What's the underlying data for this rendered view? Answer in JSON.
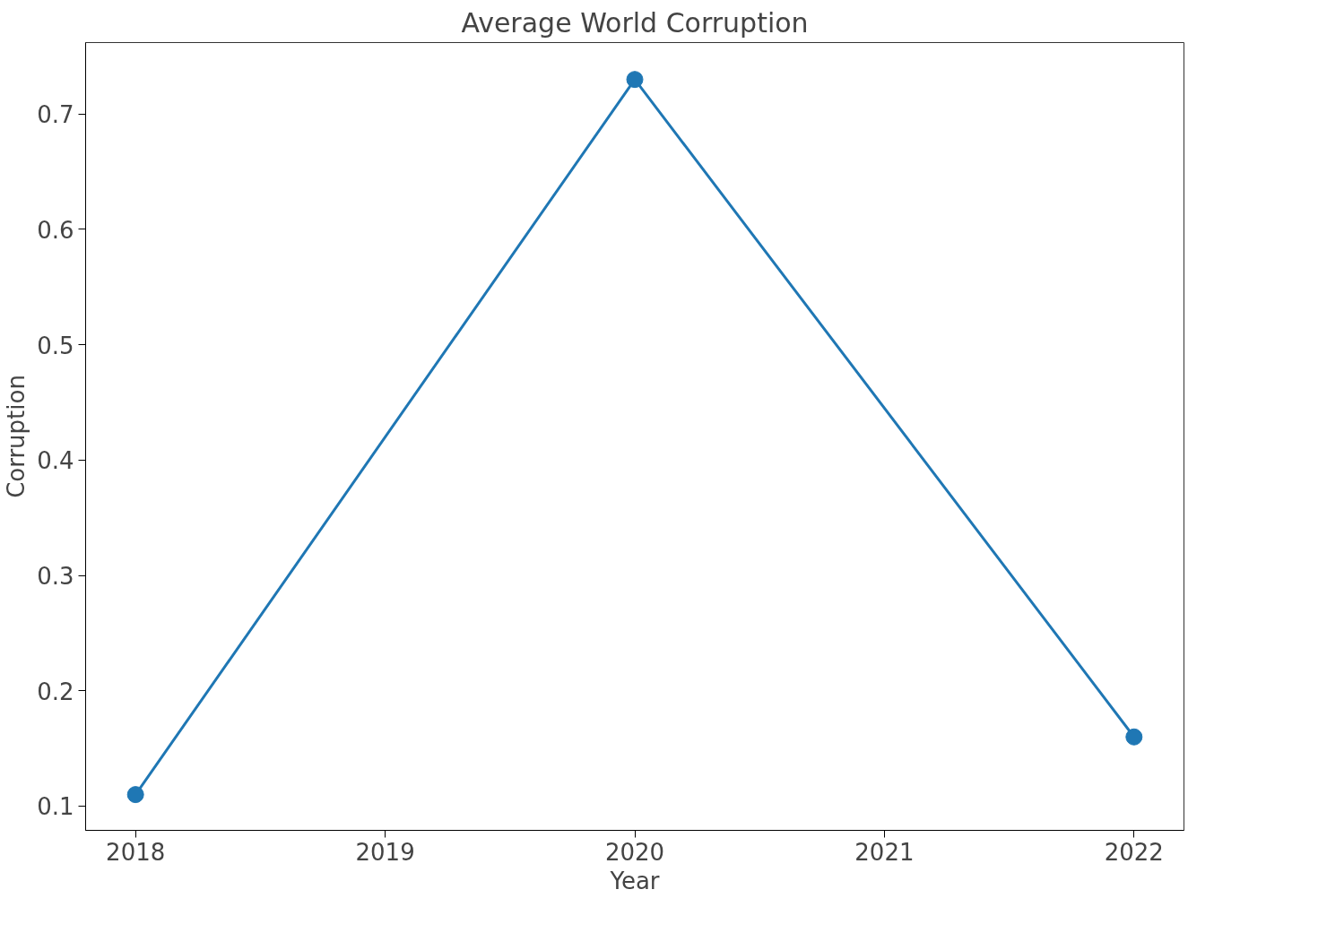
{
  "chart_data": {
    "type": "line",
    "title": "Average World Corruption",
    "xlabel": "Year",
    "ylabel": "Corruption",
    "x": [
      2018,
      2020,
      2022
    ],
    "series": [
      {
        "color": "#1f77b4",
        "values": [
          0.11,
          0.73,
          0.16
        ]
      }
    ],
    "xlim": [
      2017.8,
      2022.2
    ],
    "ylim": [
      0.079,
      0.762
    ],
    "xticks": [
      2018,
      2019,
      2020,
      2021,
      2022
    ],
    "yticks": [
      0.1,
      0.2,
      0.3,
      0.4,
      0.5,
      0.6,
      0.7
    ],
    "marker": "circle",
    "line_style": "solid",
    "grid": false
  }
}
